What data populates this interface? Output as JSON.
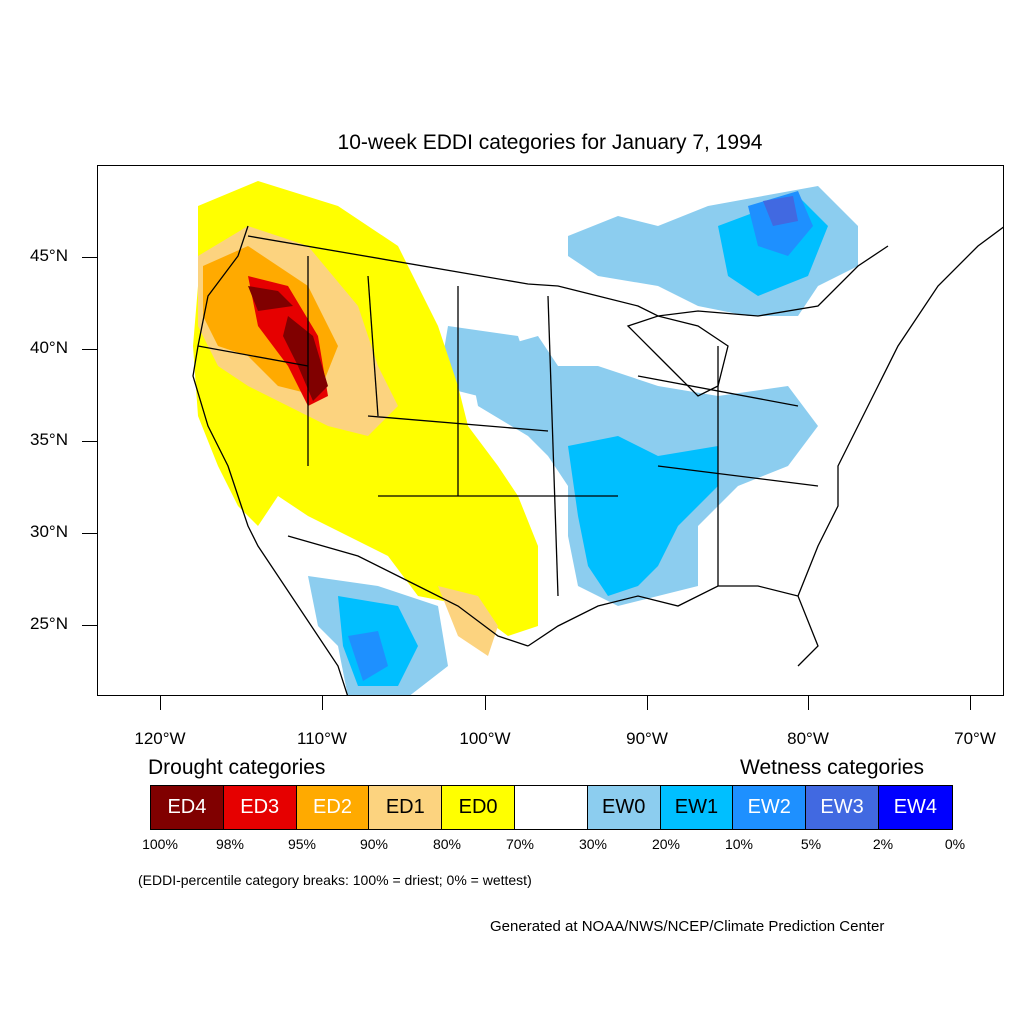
{
  "title": "10-week EDDI categories for January 7, 1994",
  "lat_labels": [
    "45°N",
    "40°N",
    "35°N",
    "30°N",
    "25°N"
  ],
  "lon_labels": [
    "120°W",
    "110°W",
    "100°W",
    "90°W",
    "80°W",
    "70°W"
  ],
  "legend": {
    "drought_heading": "Drought categories",
    "wetness_heading": "Wetness categories",
    "categories": [
      {
        "label": "ED4",
        "color": "#800000",
        "text_color": "#ffffff"
      },
      {
        "label": "ED3",
        "color": "#e60000",
        "text_color": "#ffffff"
      },
      {
        "label": "ED2",
        "color": "#ffaa00",
        "text_color": "#ffffff"
      },
      {
        "label": "ED1",
        "color": "#fcd37f",
        "text_color": "#000000"
      },
      {
        "label": "ED0",
        "color": "#ffff00",
        "text_color": "#000000"
      },
      {
        "label": "",
        "color": "#ffffff",
        "text_color": "#000000"
      },
      {
        "label": "EW0",
        "color": "#8ccdef",
        "text_color": "#000000"
      },
      {
        "label": "EW1",
        "color": "#00bfff",
        "text_color": "#000000"
      },
      {
        "label": "EW2",
        "color": "#1e90ff",
        "text_color": "#ffffff"
      },
      {
        "label": "EW3",
        "color": "#4169e1",
        "text_color": "#ffffff"
      },
      {
        "label": "EW4",
        "color": "#0000ff",
        "text_color": "#ffffff"
      }
    ],
    "percentiles": [
      "100%",
      "98%",
      "95%",
      "90%",
      "80%",
      "70%",
      "30%",
      "20%",
      "10%",
      "5%",
      "2%",
      "0%"
    ]
  },
  "note": "(EDDI-percentile category breaks: 100% = driest; 0% = wettest)",
  "credit": "Generated at NOAA/NWS/NCEP/Climate Prediction Center"
}
